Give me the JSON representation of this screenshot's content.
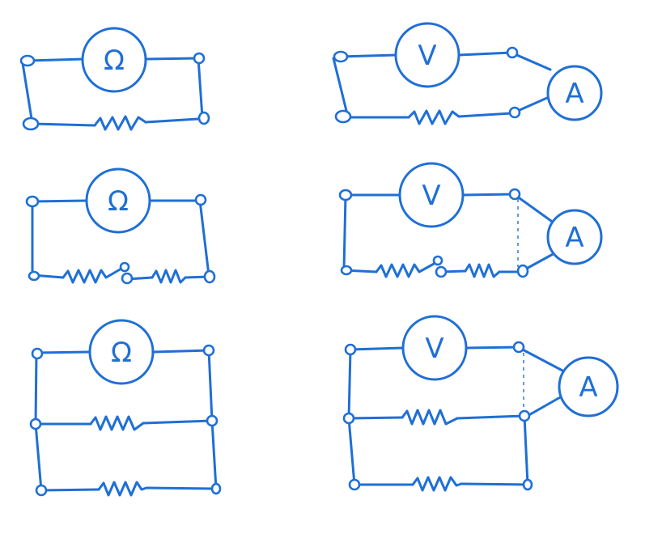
{
  "colors": {
    "ink": "#1f6fd6",
    "background": "#ffffff"
  },
  "symbols": {
    "ohm": "Ω",
    "volt": "V",
    "amp": "A"
  },
  "circuits": [
    {
      "meter": "ohmmeter",
      "load": "single-resistor"
    },
    {
      "meter": "voltmeter-ammeter",
      "load": "single-resistor"
    },
    {
      "meter": "ohmmeter",
      "load": "series-resistors"
    },
    {
      "meter": "voltmeter-ammeter",
      "load": "series-resistors"
    },
    {
      "meter": "ohmmeter",
      "load": "parallel-resistors"
    },
    {
      "meter": "voltmeter-ammeter",
      "load": "parallel-resistors"
    }
  ]
}
